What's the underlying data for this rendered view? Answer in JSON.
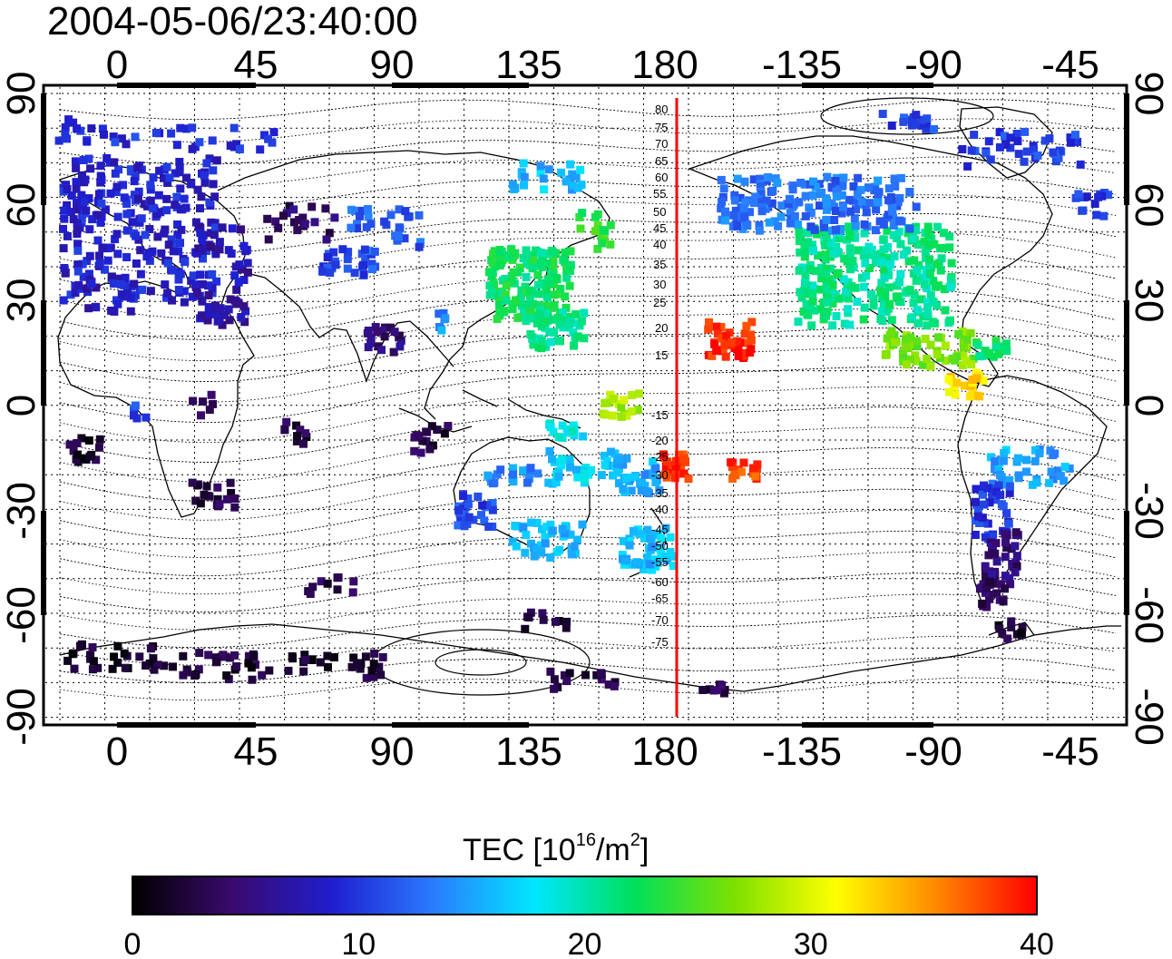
{
  "title": "2004-05-06/23:40:00",
  "colorbar": {
    "label_main": "TEC  [10",
    "label_sup": "16",
    "label_mid": "/m",
    "label_sup2": "2",
    "label_end": "]",
    "min": 0,
    "max": 40,
    "ticks": [
      "0",
      "10",
      "20",
      "30",
      "40"
    ],
    "colors": [
      "#000000",
      "#3a0a6e",
      "#1f1fd0",
      "#2a7cff",
      "#00e6ff",
      "#00e05a",
      "#7fe000",
      "#ffff00",
      "#ff8800",
      "#ff0000"
    ]
  },
  "axes": {
    "lon_ticks": [
      "0",
      "45",
      "90",
      "135",
      "180",
      "-135",
      "-90",
      "-45"
    ],
    "lat_ticks": [
      "90",
      "60",
      "30",
      "0",
      "-30",
      "-60",
      "-90"
    ]
  },
  "meridian_labels_north": [
    "80",
    "75",
    "70",
    "65",
    "60",
    "55",
    "50",
    "45",
    "40",
    "35",
    "30",
    "25",
    "20",
    "15"
  ],
  "meridian_labels_south": [
    "-15",
    "-20",
    "-25",
    "-30",
    "-35",
    "-40",
    "-45",
    "-50",
    "-55",
    "-60",
    "-65",
    "-70",
    "-75"
  ],
  "marker_line_color": "#ff0000"
}
